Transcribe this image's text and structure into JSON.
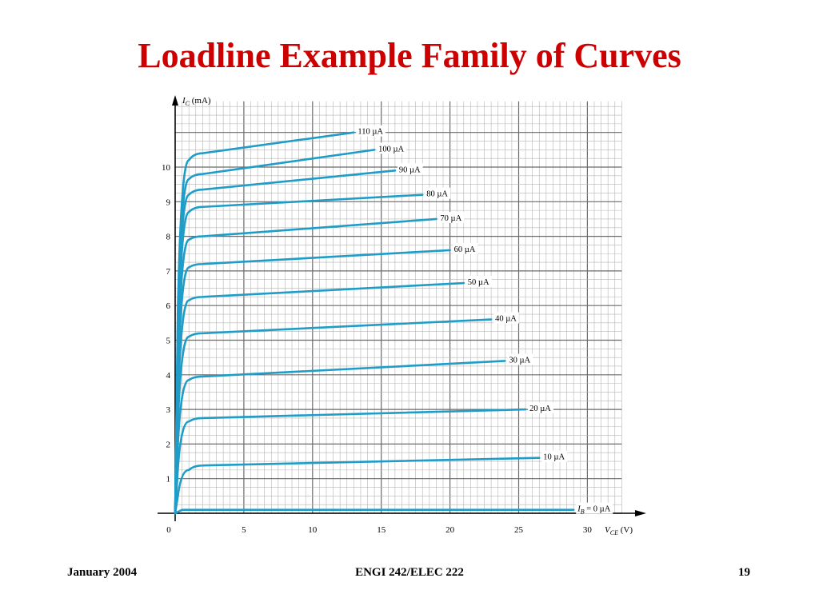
{
  "slide": {
    "title": "Loadline Example Family of Curves",
    "footer_left": "January 2004",
    "footer_center": "ENGI 242/ELEC 222",
    "footer_right": "19"
  },
  "chart_data": {
    "type": "line",
    "title": "",
    "ylabel_main": "I",
    "ylabel_sub": "C",
    "ylabel_unit": "(mA)",
    "xlabel_main": "V",
    "xlabel_sub": "CE",
    "xlabel_unit": "(V)",
    "xlim": [
      0,
      32.5
    ],
    "ylim": [
      0,
      11.9
    ],
    "x_ticks": [
      0,
      5,
      10,
      15,
      20,
      25,
      30
    ],
    "y_ticks": [
      1,
      2,
      3,
      4,
      5,
      6,
      7,
      8,
      9,
      10
    ],
    "x_tick_labels": [
      "0",
      "5",
      "10",
      "15",
      "20",
      "25",
      "30"
    ],
    "y_tick_labels": [
      "1",
      "2",
      "3",
      "4",
      "5",
      "6",
      "7",
      "8",
      "9",
      "10"
    ],
    "grid": true,
    "line_color": "#1f9dc8",
    "series": [
      {
        "label": "I",
        "label_sub": "B",
        "label_rest": " = 0 µA",
        "x": [
          0,
          0.5,
          29
        ],
        "y": [
          0,
          0.1,
          0.1
        ]
      },
      {
        "label": "10 µA",
        "x": [
          0,
          0.2,
          0.5,
          1,
          2,
          26.5
        ],
        "y": [
          0,
          0.5,
          1.0,
          1.25,
          1.38,
          1.6
        ]
      },
      {
        "label": "20 µA",
        "x": [
          0,
          0.2,
          0.5,
          1,
          2,
          25.5
        ],
        "y": [
          0,
          1.3,
          2.4,
          2.65,
          2.75,
          3.0
        ]
      },
      {
        "label": "30 µA",
        "x": [
          0,
          0.2,
          0.5,
          1,
          2,
          24
        ],
        "y": [
          0,
          2.0,
          3.6,
          3.85,
          3.95,
          4.4
        ]
      },
      {
        "label": "40 µA",
        "x": [
          0,
          0.2,
          0.5,
          1,
          2,
          23
        ],
        "y": [
          0,
          2.6,
          4.8,
          5.1,
          5.2,
          5.6
        ]
      },
      {
        "label": "50 µA",
        "x": [
          0,
          0.2,
          0.5,
          1,
          2,
          21
        ],
        "y": [
          0,
          3.2,
          5.9,
          6.15,
          6.25,
          6.65
        ]
      },
      {
        "label": "60 µA",
        "x": [
          0,
          0.2,
          0.5,
          1,
          2,
          20
        ],
        "y": [
          0,
          3.8,
          6.8,
          7.1,
          7.2,
          7.6
        ]
      },
      {
        "label": "70 µA",
        "x": [
          0,
          0.2,
          0.5,
          1,
          2,
          19
        ],
        "y": [
          0,
          4.3,
          7.6,
          7.9,
          8.0,
          8.5
        ]
      },
      {
        "label": "80 µA",
        "x": [
          0,
          0.2,
          0.5,
          1,
          2,
          18
        ],
        "y": [
          0,
          4.8,
          8.4,
          8.7,
          8.85,
          9.2
        ]
      },
      {
        "label": "90 µA",
        "x": [
          0,
          0.2,
          0.5,
          1,
          2,
          16
        ],
        "y": [
          0,
          5.3,
          9.0,
          9.2,
          9.35,
          9.9
        ]
      },
      {
        "label": "100 µA",
        "x": [
          0,
          0.2,
          0.5,
          1,
          2,
          14.5
        ],
        "y": [
          0,
          5.7,
          9.4,
          9.65,
          9.8,
          10.5
        ]
      },
      {
        "label": "110 µA",
        "x": [
          0,
          0.2,
          0.5,
          1,
          2,
          13
        ],
        "y": [
          0,
          6.0,
          9.9,
          10.2,
          10.4,
          11.0
        ]
      }
    ]
  }
}
